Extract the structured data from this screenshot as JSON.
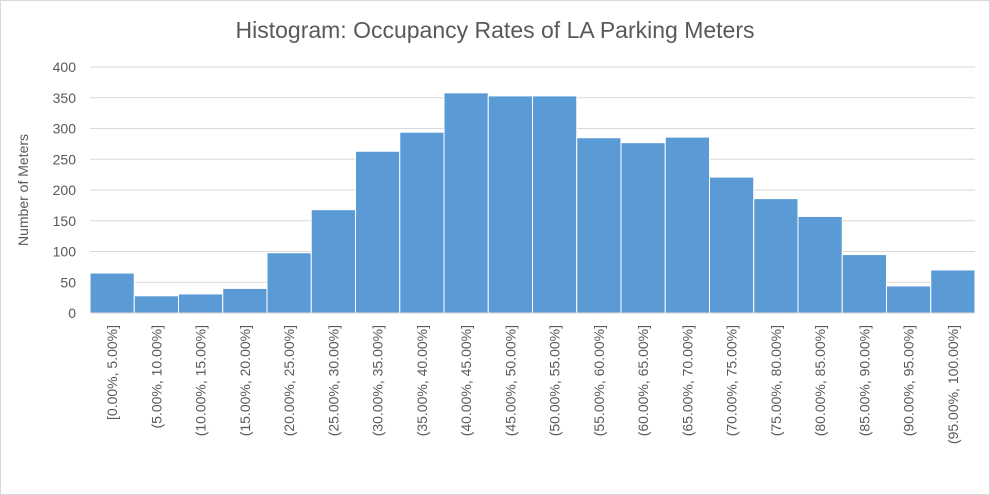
{
  "chart_data": {
    "type": "bar",
    "title": "Histogram: Occupancy Rates of LA Parking Meters",
    "xlabel": "",
    "ylabel": "Number of Meters",
    "ylim": [
      0,
      400
    ],
    "yticks": [
      0,
      50,
      100,
      150,
      200,
      250,
      300,
      350,
      400
    ],
    "grid": true,
    "legend": "none",
    "bar_color": "#5B9BD5",
    "categories": [
      "[0.00%, 5.00%]",
      "(5.00%, 10.00%]",
      "(10.00%, 15.00%]",
      "(15.00%, 20.00%]",
      "(20.00%, 25.00%]",
      "(25.00%, 30.00%]",
      "(30.00%, 35.00%]",
      "(35.00%, 40.00%]",
      "(40.00%, 45.00%]",
      "(45.00%, 50.00%]",
      "(50.00%, 55.00%]",
      "(55.00%, 60.00%]",
      "(60.00%, 65.00%]",
      "(65.00%, 70.00%]",
      "(70.00%, 75.00%]",
      "(75.00%, 80.00%]",
      "(80.00%, 85.00%]",
      "(85.00%, 90.00%]",
      "(90.00%, 95.00%]",
      "(95.00%, 100.00%]"
    ],
    "values": [
      65,
      28,
      31,
      40,
      98,
      168,
      263,
      294,
      358,
      353,
      353,
      285,
      277,
      286,
      221,
      186,
      157,
      95,
      44,
      70
    ]
  }
}
